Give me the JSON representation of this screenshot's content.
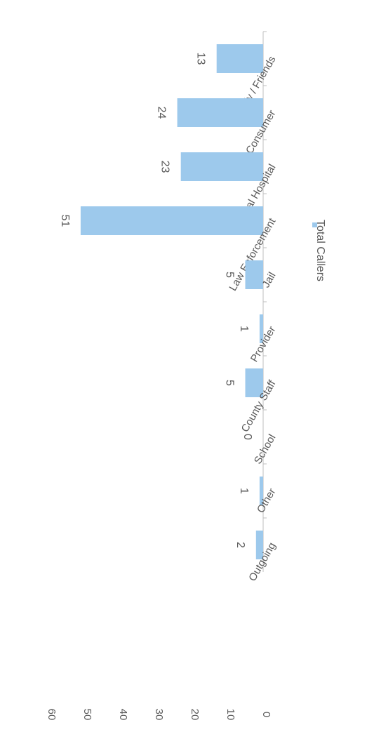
{
  "chart_data": {
    "type": "bar",
    "orientation": "rotated-90-clockwise",
    "categories": [
      "Family / Friends",
      "Consumer",
      "Medical Hospital",
      "Law Enforcement",
      "Jail",
      "Provider",
      "County Staff",
      "School",
      "Other",
      "Outgoing"
    ],
    "series": [
      {
        "name": "Total Callers",
        "values": [
          13,
          24,
          23,
          51,
          5,
          1,
          5,
          0,
          1,
          2
        ]
      }
    ],
    "ylim": [
      0,
      60
    ],
    "yticks": [
      "0",
      "10",
      "20",
      "30",
      "40",
      "50",
      "60"
    ],
    "data_labels": [
      "13",
      "24",
      "23",
      "51",
      "5",
      "1",
      "5",
      "0",
      "1",
      "2"
    ],
    "legend": {
      "label": "Total Callers",
      "position": "top"
    },
    "colors": {
      "bar": "#9dc9ec",
      "axis": "#bfbfbf",
      "text": "#595959"
    },
    "grid": false
  }
}
